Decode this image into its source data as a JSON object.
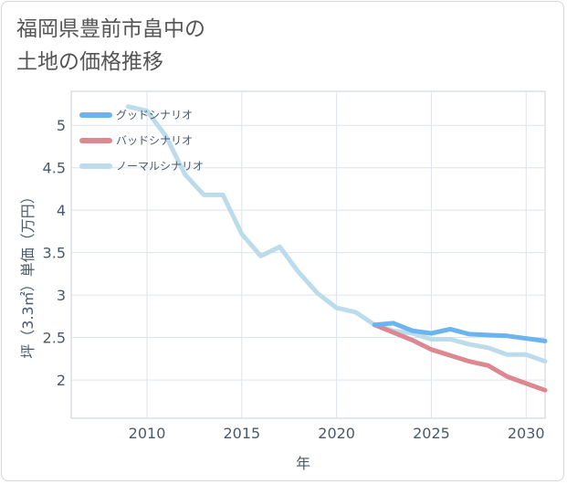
{
  "title_lines": [
    "福岡県豊前市畠中の",
    "土地の価格推移"
  ],
  "chart_data": {
    "type": "line",
    "xlabel": "年",
    "ylabel": "坪（3.3㎡）単価（万円）",
    "xlim": [
      2006,
      2031
    ],
    "ylim": [
      1.55,
      5.4
    ],
    "xticks": [
      2010,
      2015,
      2020,
      2025,
      2030
    ],
    "yticks": [
      2,
      2.5,
      3,
      3.5,
      4,
      4.5,
      5
    ],
    "ytick_labels": [
      "2",
      "2.5",
      "3",
      "3.5",
      "4",
      "4.5",
      "5"
    ],
    "grid": true,
    "legend_position": "top-left",
    "series": [
      {
        "name": "グッドシナリオ",
        "color": "#6cb4ee",
        "x": [
          2022,
          2023,
          2024,
          2025,
          2026,
          2027,
          2028,
          2029,
          2030,
          2031
        ],
        "y": [
          2.65,
          2.67,
          2.58,
          2.55,
          2.6,
          2.54,
          2.53,
          2.52,
          2.49,
          2.46
        ]
      },
      {
        "name": "バッドシナリオ",
        "color": "#dd8890",
        "x": [
          2022,
          2023,
          2024,
          2025,
          2026,
          2027,
          2028,
          2029,
          2030,
          2031
        ],
        "y": [
          2.65,
          2.56,
          2.47,
          2.36,
          2.29,
          2.22,
          2.17,
          2.04,
          1.96,
          1.88
        ]
      },
      {
        "name": "ノーマルシナリオ",
        "color": "#bcdcec",
        "x": [
          2009,
          2010,
          2011,
          2012,
          2013,
          2014,
          2015,
          2016,
          2017,
          2018,
          2019,
          2020,
          2021,
          2022,
          2023,
          2024,
          2025,
          2026,
          2027,
          2028,
          2029,
          2030,
          2031
        ],
        "y": [
          5.22,
          5.17,
          4.87,
          4.42,
          4.18,
          4.18,
          3.72,
          3.46,
          3.57,
          3.27,
          3.02,
          2.85,
          2.8,
          2.65,
          2.58,
          2.55,
          2.48,
          2.48,
          2.42,
          2.38,
          2.3,
          2.3,
          2.22
        ]
      }
    ]
  }
}
